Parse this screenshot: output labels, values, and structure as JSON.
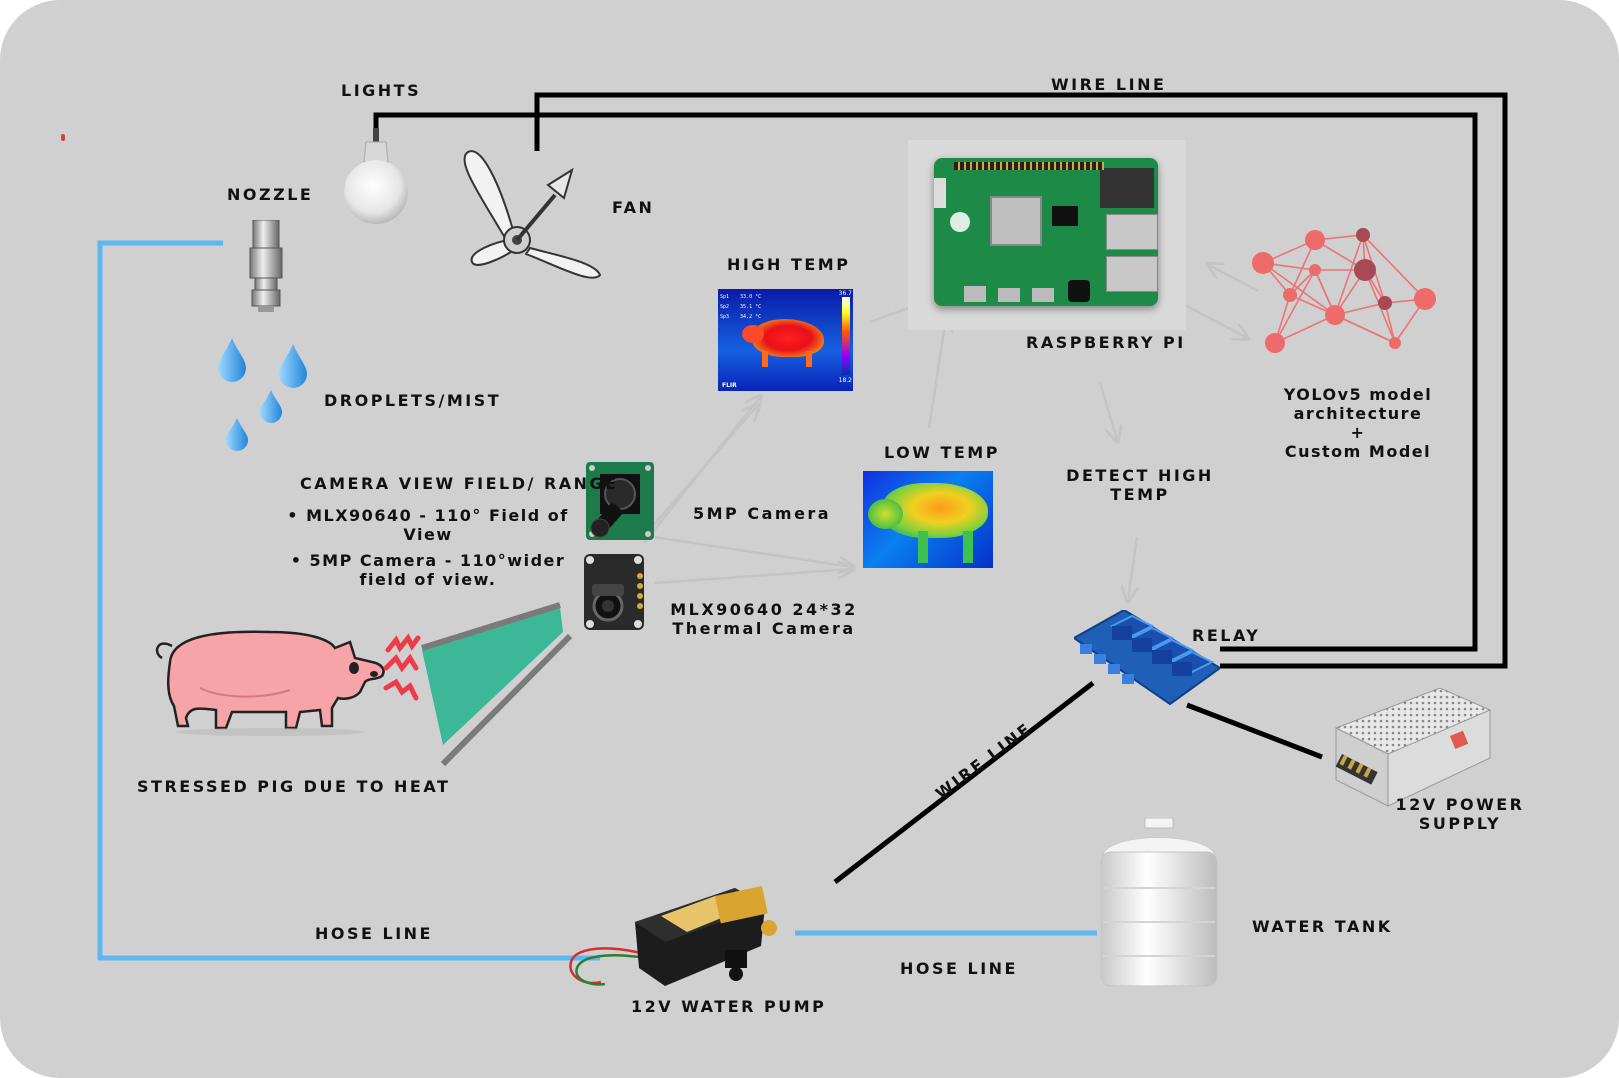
{
  "labels": {
    "lights": "LIGHTS",
    "wire_line_top": "WIRE LINE",
    "nozzle": "NOZZLE",
    "fan": "FAN",
    "high_temp": "HIGH TEMP",
    "raspberry_pi": "RASPBERRY PI",
    "droplets": "DROPLETS/MIST",
    "low_temp": "LOW TEMP",
    "detect_high_temp": "DETECT HIGH TEMP",
    "camera_view_field": "CAMERA VIEW FIELD/ RANGE",
    "five_mp_camera": "5MP Camera",
    "mlx_camera": "MLX90640  24*32 Thermal Camera",
    "relay": "RELAY",
    "stressed_pig": "STRESSED PIG DUE TO HEAT",
    "wire_line_diag": "WIRE LINE",
    "power_supply": "12V POWER SUPPLY",
    "water_tank": "WATER TANK",
    "hose_line_left": "HOSE LINE",
    "hose_line_bottom": "HOSE LINE",
    "water_pump": "12V WATER PUMP"
  },
  "camera_specs": [
    "• MLX90640 - 110° Field of View",
    "• 5MP Camera - 110°wider field of view."
  ],
  "yolo": {
    "line1": "YOLOv5 model",
    "line2": "architecture",
    "line3": "+",
    "line4": "Custom Model"
  },
  "thermal_image": {
    "spot_labels": [
      "Sp1",
      "Sp2",
      "Sp3"
    ],
    "spot_values": [
      "33.0 °C",
      "35.1 °C",
      "34.2 °C"
    ],
    "brand": "FLIR",
    "scale_max": "36.7",
    "scale_min": "18.2"
  },
  "colors": {
    "background": "#d0d0d0",
    "hose": "#5bb8f0",
    "wire": "#000000",
    "arrow": "#c4c4c4",
    "view_cone": "#3db896",
    "pig": "#f6a4a8",
    "network_node": "#ee6b6b"
  }
}
